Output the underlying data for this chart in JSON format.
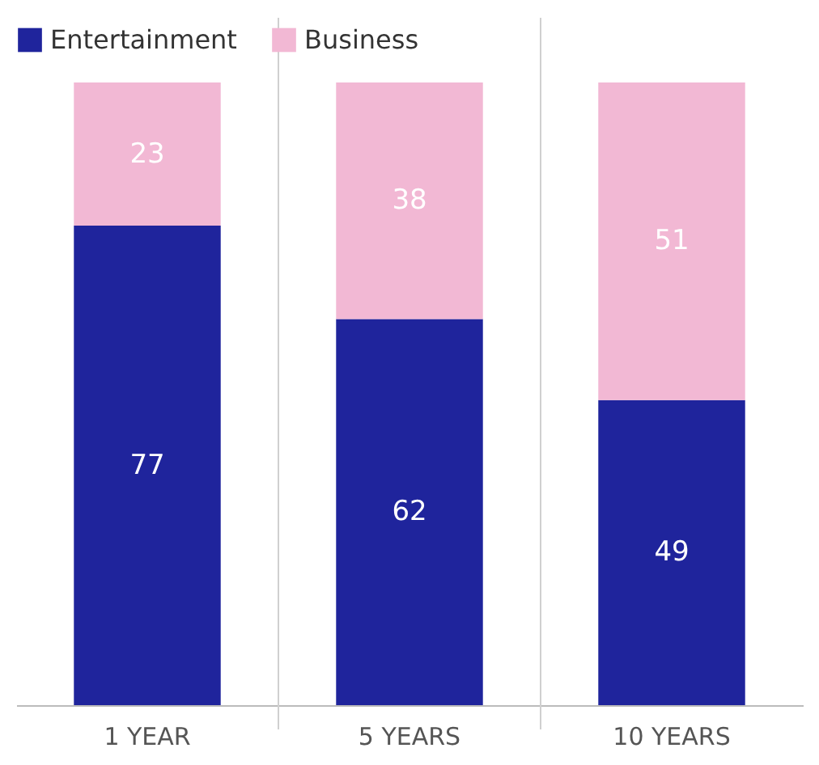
{
  "chart_data": {
    "type": "bar",
    "stacked": true,
    "categories": [
      "1 YEAR",
      "5 YEARS",
      "10 YEARS"
    ],
    "series": [
      {
        "name": "Entertainment",
        "color": "#1f249c",
        "values": [
          77,
          62,
          49
        ]
      },
      {
        "name": "Business",
        "color": "#f2b8d4",
        "values": [
          23,
          38,
          51
        ]
      }
    ],
    "data_labels": true,
    "legend": "top",
    "tick_labels": "x"
  }
}
